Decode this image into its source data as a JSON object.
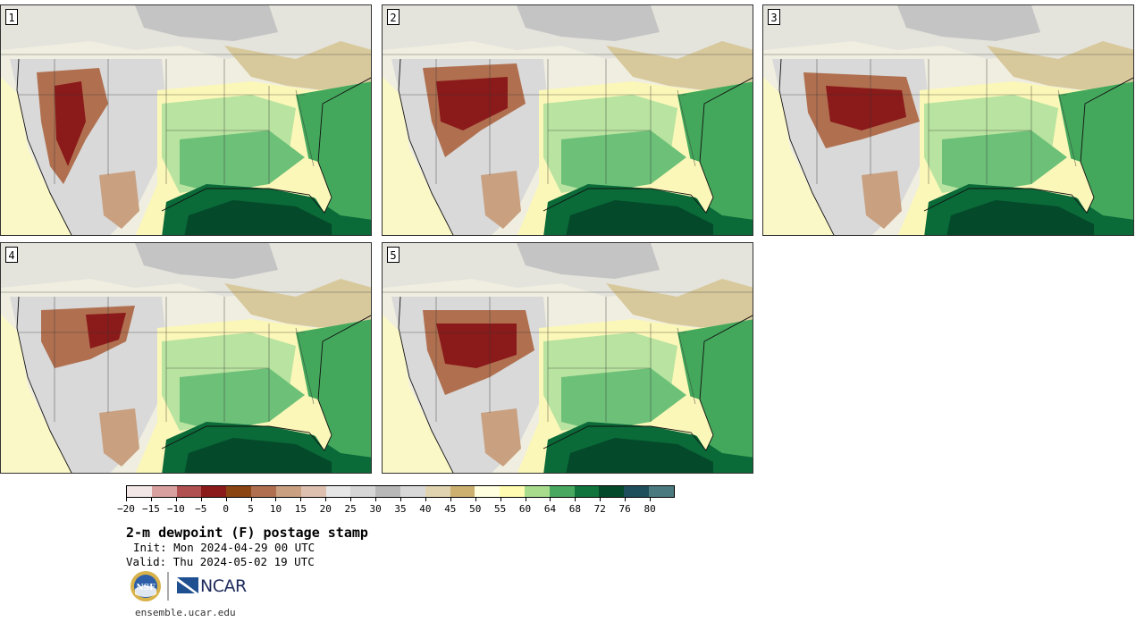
{
  "panels": [
    {
      "id": "p1",
      "label": "1"
    },
    {
      "id": "p2",
      "label": "2"
    },
    {
      "id": "p3",
      "label": "3"
    },
    {
      "id": "p4",
      "label": "4"
    },
    {
      "id": "p5",
      "label": "5"
    }
  ],
  "colorbar": {
    "colors": [
      "#f2e6e6",
      "#d9a0a0",
      "#b05050",
      "#8b1a1a",
      "#8b4513",
      "#b07050",
      "#c9a080",
      "#ddc0b0",
      "#e6e6e6",
      "#d6d6d6",
      "#b8b8b8",
      "#d8d8d8",
      "#e0d4b0",
      "#ccb070",
      "#ffffe0",
      "#fffbb0",
      "#a8dc8c",
      "#48a860",
      "#10743c",
      "#04492a",
      "#1e4e5c",
      "#4a7a80"
    ],
    "tick_labels": [
      "−20",
      "−15",
      "−10",
      "−5",
      "0",
      "5",
      "10",
      "15",
      "20",
      "25",
      "30",
      "35",
      "40",
      "45",
      "50",
      "55",
      "60",
      "64",
      "68",
      "72",
      "76",
      "80"
    ]
  },
  "title": "2-m dewpoint (F) postage stamp",
  "init": "Init: Mon 2024-04-29 00 UTC",
  "valid": "Valid: Thu 2024-05-02 19 UTC",
  "logos": {
    "nsf": "NSF",
    "ncar": "NCAR"
  },
  "site": "ensemble.ucar.edu"
}
